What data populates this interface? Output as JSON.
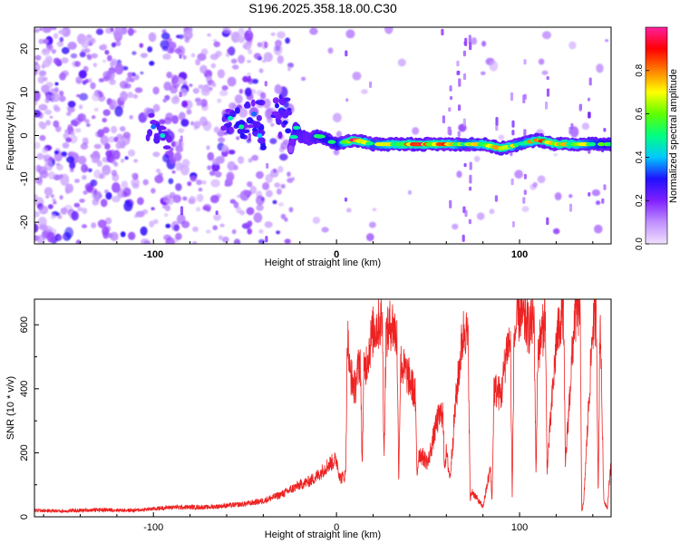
{
  "figure_title": "S196.2025.358.18.00.C30",
  "chart_data": [
    {
      "type": "heatmap",
      "name": "spectrogram",
      "xlabel": "Height of straight line (km)",
      "ylabel": "Frequency (Hz)",
      "xlim": [
        -165,
        150
      ],
      "ylim": [
        -25,
        25
      ],
      "x_ticks": [
        -100,
        0,
        100
      ],
      "x_tick_labels": [
        "-100",
        "0",
        "100"
      ],
      "y_ticks": [
        -20,
        -10,
        0,
        10,
        20
      ],
      "y_tick_labels": [
        "-20",
        "-10",
        "0",
        "10",
        "20"
      ],
      "colorbar": {
        "label": "Normalized spectral amplitude",
        "range": [
          0,
          1
        ],
        "ticks": [
          0.0,
          0.2,
          0.4,
          0.6,
          0.8
        ],
        "tick_labels": [
          "0.0",
          "0.2",
          "0.4",
          "0.6",
          "0.8"
        ],
        "colors": [
          "#f0e0ff",
          "#c090ff",
          "#8020ff",
          "#2010ff",
          "#00c8ff",
          "#00ff80",
          "#60ff00",
          "#ffff00",
          "#ff8000",
          "#ff0000",
          "#ff20a0"
        ]
      },
      "ridge": {
        "x": [
          -25,
          -22,
          -20,
          -15,
          -10,
          -5,
          0,
          10,
          20,
          30,
          40,
          50,
          60,
          70,
          80,
          90,
          100,
          110,
          120,
          130,
          140,
          150
        ],
        "freq": [
          -3,
          2,
          0,
          -1,
          0,
          -1,
          -2,
          -1,
          -2,
          -2,
          -2,
          -2,
          -2,
          -2,
          -2,
          -3,
          -2,
          -1,
          -2,
          -2,
          -2,
          -2
        ],
        "amplitude": [
          0.3,
          0.55,
          0.45,
          0.4,
          0.5,
          0.55,
          0.5,
          0.95,
          0.6,
          0.75,
          0.85,
          0.9,
          0.8,
          0.6,
          0.75,
          0.9,
          0.6,
          0.8,
          0.95,
          0.75,
          0.6,
          0.5
        ]
      }
    },
    {
      "type": "line",
      "name": "snr",
      "xlabel": "Height of straight line (km)",
      "ylabel": "SNR (10 * v/v)",
      "xlim": [
        -165,
        150
      ],
      "ylim": [
        0,
        680
      ],
      "x_ticks": [
        -100,
        0,
        100
      ],
      "x_tick_labels": [
        "-100",
        "0",
        "100"
      ],
      "y_ticks": [
        0,
        200,
        400,
        600
      ],
      "y_tick_labels": [
        "0",
        "200",
        "400",
        "600"
      ],
      "line_color": "#ee2222",
      "series": [
        {
          "name": "SNR",
          "x": [
            -165,
            -150,
            -130,
            -110,
            -90,
            -70,
            -50,
            -40,
            -30,
            -20,
            -15,
            -10,
            -5,
            0,
            2,
            5,
            6,
            7,
            10,
            13,
            14,
            15,
            20,
            25,
            26,
            27,
            30,
            33,
            34,
            35,
            40,
            43,
            44,
            45,
            50,
            55,
            58,
            59,
            60,
            62,
            65,
            68,
            70,
            72,
            73,
            74,
            80,
            84,
            85,
            86,
            90,
            93,
            95,
            96,
            97,
            100,
            105,
            108,
            109,
            110,
            113,
            114,
            115,
            120,
            123,
            124,
            125,
            130,
            133,
            134,
            135,
            140,
            142,
            143,
            144,
            146,
            148,
            150
          ],
          "y": [
            20,
            18,
            22,
            20,
            30,
            30,
            40,
            50,
            70,
            100,
            110,
            130,
            160,
            180,
            120,
            130,
            580,
            460,
            400,
            500,
            160,
            450,
            580,
            620,
            180,
            560,
            610,
            560,
            120,
            480,
            430,
            380,
            130,
            200,
            170,
            300,
            330,
            160,
            200,
            120,
            350,
            520,
            600,
            540,
            50,
            80,
            30,
            150,
            50,
            400,
            380,
            530,
            550,
            60,
            560,
            640,
            590,
            610,
            130,
            520,
            590,
            660,
            150,
            540,
            640,
            660,
            160,
            620,
            660,
            20,
            40,
            600,
            620,
            60,
            650,
            50,
            30,
            180
          ]
        }
      ]
    }
  ]
}
